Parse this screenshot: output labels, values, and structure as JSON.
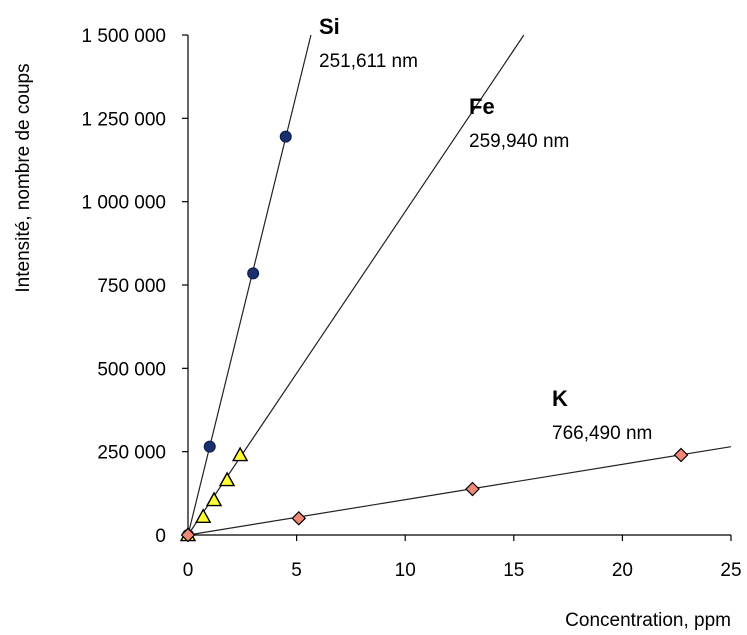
{
  "chart_data": {
    "type": "scatter",
    "title": "",
    "xlabel": "Concentration, ppm",
    "ylabel": "Intensité, nombre de coups",
    "xlim": [
      0,
      25
    ],
    "ylim": [
      0,
      1500000
    ],
    "xticks": [
      "0",
      "5",
      "10",
      "15",
      "20",
      "25"
    ],
    "yticks": [
      "0",
      "250 000",
      "500 000",
      "750 000",
      "1 000 000",
      "1 250 000",
      "1 500 000"
    ],
    "grid": false,
    "legend": "none",
    "series": [
      {
        "name": "Si",
        "wavelength": "251,611 nm",
        "marker": "circle",
        "color": "#1a2f6e",
        "x": [
          0,
          1,
          3,
          4.5
        ],
        "y": [
          0,
          265000,
          785000,
          1195000
        ],
        "fit_slope": 265000
      },
      {
        "name": "Fe",
        "wavelength": "259,940 nm",
        "marker": "triangle",
        "color": "#ffff33",
        "x": [
          0,
          0.7,
          1.2,
          1.8,
          2.4
        ],
        "y": [
          0,
          55000,
          105000,
          165000,
          240000
        ],
        "fit_slope": 97000
      },
      {
        "name": "K",
        "wavelength": "766,490 nm",
        "marker": "diamond",
        "color": "#f08878",
        "x": [
          0,
          5.1,
          13.1,
          22.7
        ],
        "y": [
          0,
          50000,
          138000,
          240000
        ],
        "fit_slope": 10600
      }
    ]
  }
}
